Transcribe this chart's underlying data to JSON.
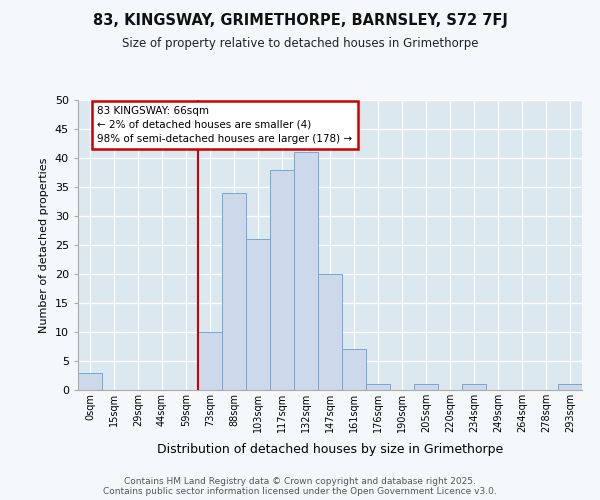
{
  "title1": "83, KINGSWAY, GRIMETHORPE, BARNSLEY, S72 7FJ",
  "title2": "Size of property relative to detached houses in Grimethorpe",
  "xlabel": "Distribution of detached houses by size in Grimethorpe",
  "ylabel": "Number of detached properties",
  "categories": [
    "0sqm",
    "15sqm",
    "29sqm",
    "44sqm",
    "59sqm",
    "73sqm",
    "88sqm",
    "103sqm",
    "117sqm",
    "132sqm",
    "147sqm",
    "161sqm",
    "176sqm",
    "190sqm",
    "205sqm",
    "220sqm",
    "234sqm",
    "249sqm",
    "264sqm",
    "278sqm",
    "293sqm"
  ],
  "values": [
    3,
    0,
    0,
    0,
    0,
    10,
    34,
    26,
    38,
    41,
    20,
    7,
    1,
    0,
    1,
    0,
    1,
    0,
    0,
    0,
    1
  ],
  "bar_color": "#cdd9ea",
  "bar_edge_color": "#6fa8d6",
  "bar_width": 1.0,
  "annotation_label": "83 KINGSWAY: 66sqm\n← 2% of detached houses are smaller (4)\n98% of semi-detached houses are larger (178) →",
  "annotation_box_color": "#ffffff",
  "annotation_box_edge_color": "#cc0000",
  "vline_color": "#cc0000",
  "ylim": [
    0,
    50
  ],
  "yticks": [
    0,
    5,
    10,
    15,
    20,
    25,
    30,
    35,
    40,
    45,
    50
  ],
  "plot_bg_color": "#dce8f0",
  "grid_color": "#ffffff",
  "fig_bg_color": "#f5f8fa",
  "footer_line1": "Contains HM Land Registry data © Crown copyright and database right 2025.",
  "footer_line2": "Contains public sector information licensed under the Open Government Licence v3.0."
}
